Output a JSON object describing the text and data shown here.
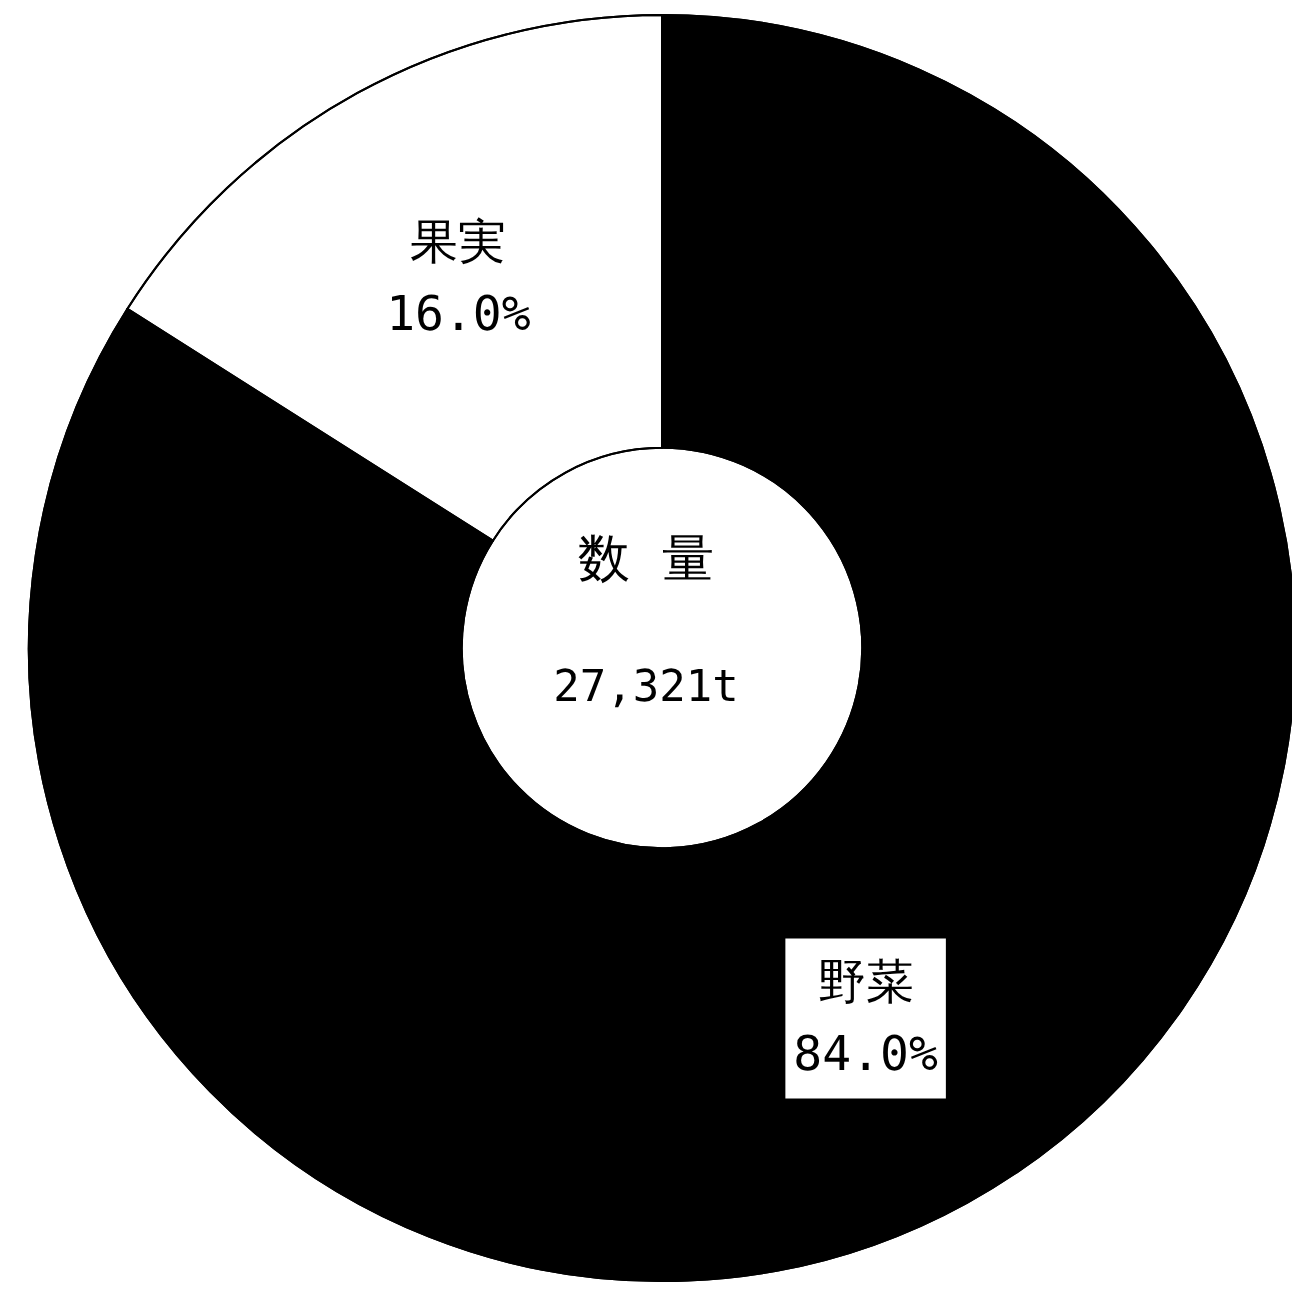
{
  "chart_data": {
    "type": "donut",
    "title": "数 量",
    "subtitle": "27,321t",
    "categories": [
      "野菜",
      "果実"
    ],
    "values": [
      84.0,
      16.0
    ],
    "value_labels": [
      "84.0%",
      "16.0%"
    ],
    "colors": [
      "#000000",
      "#ffffff"
    ],
    "legend": false
  }
}
